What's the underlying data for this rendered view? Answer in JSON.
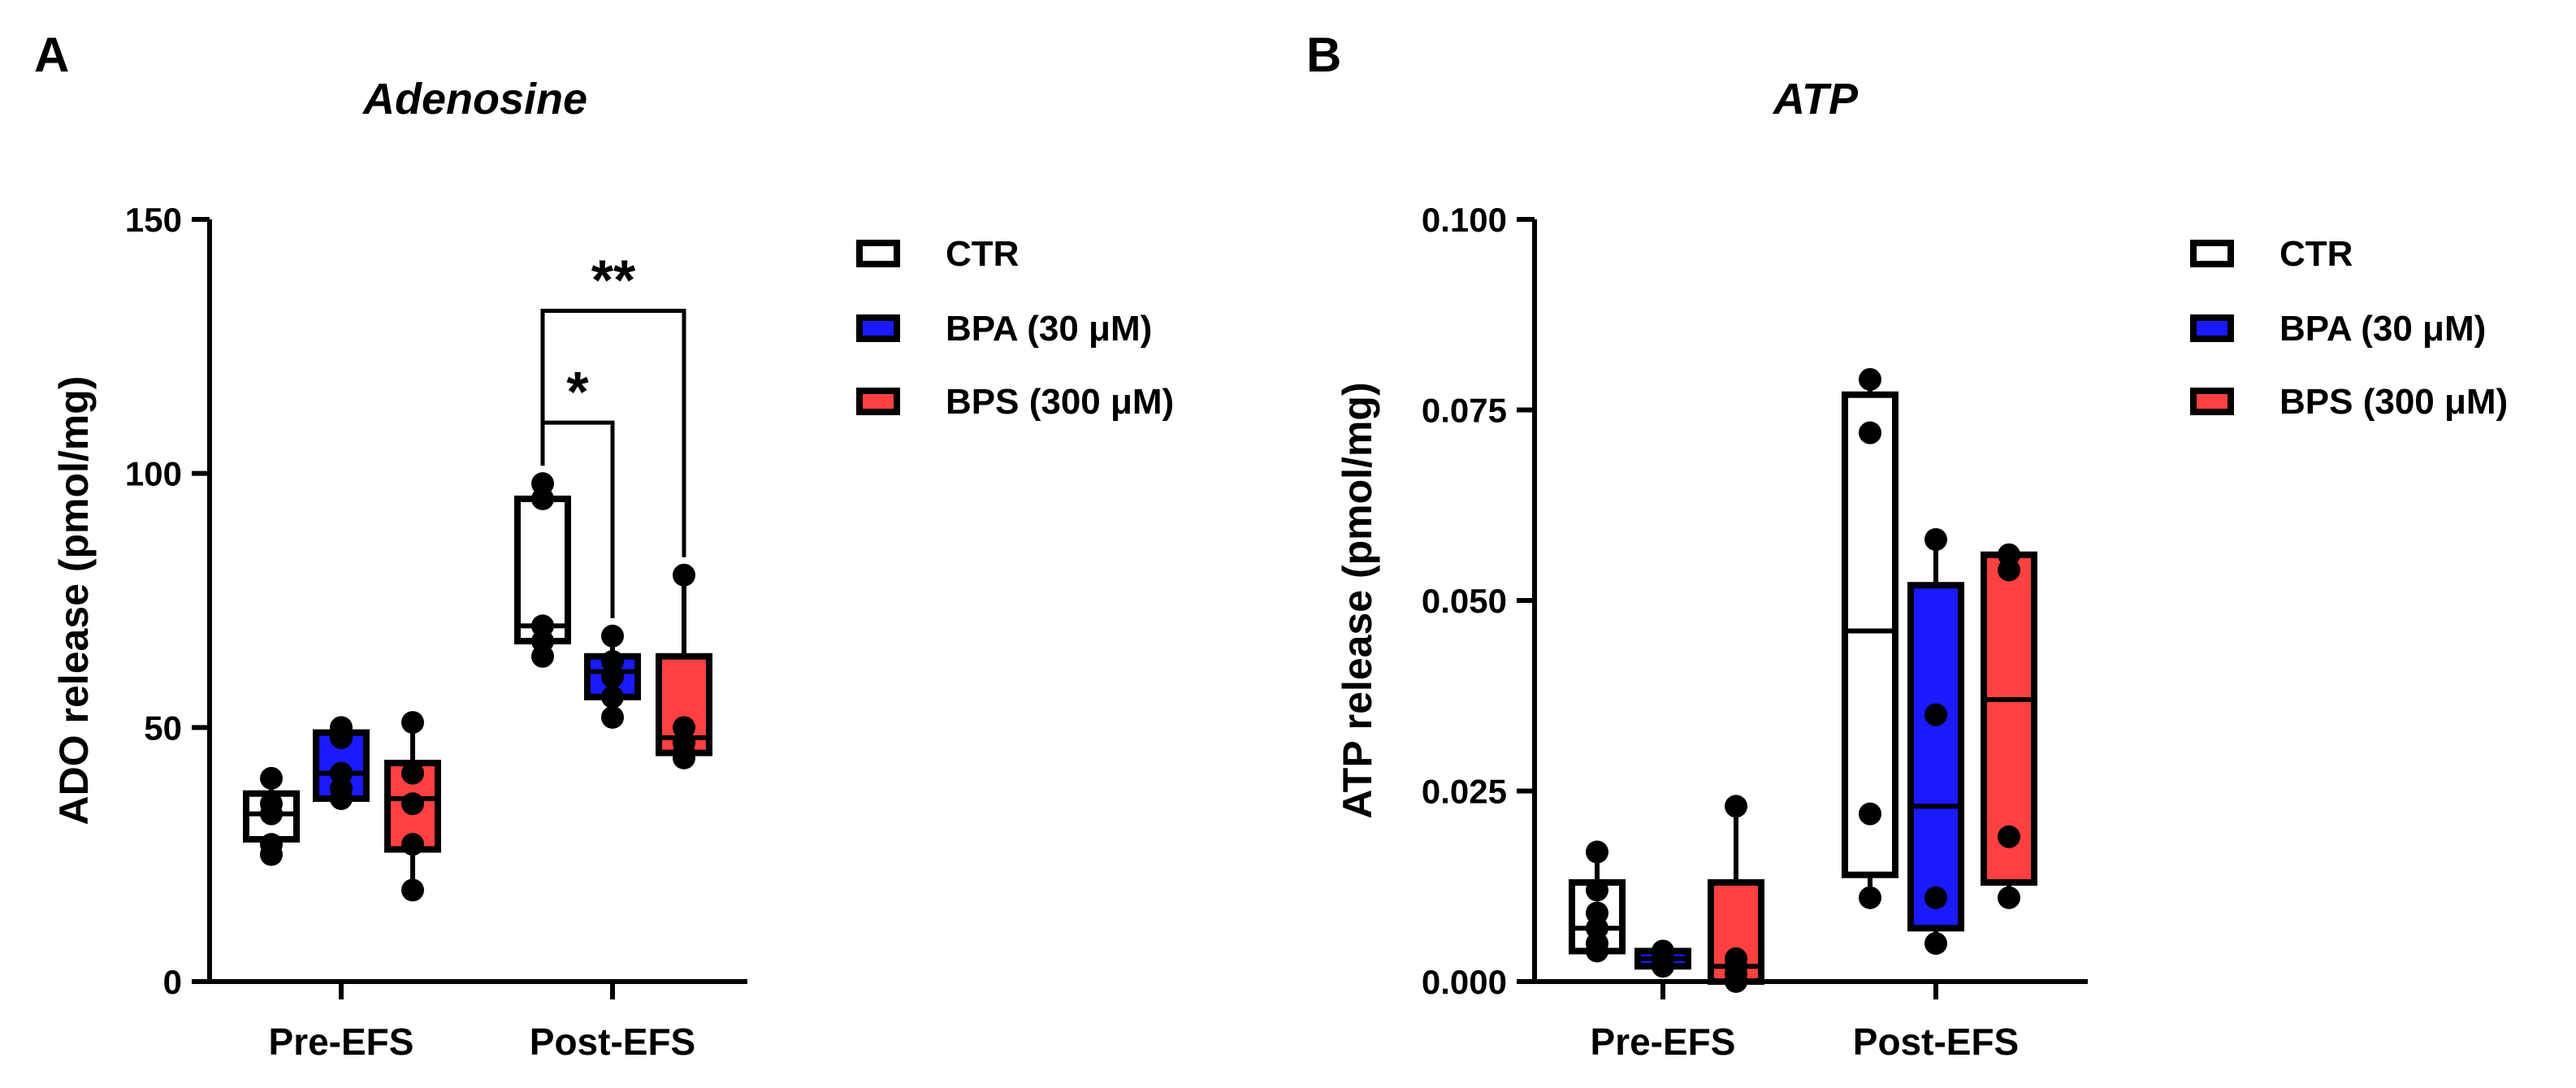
{
  "chart_data": [
    {
      "panel": "A",
      "type": "box",
      "title": "Adenosine",
      "ylabel": "ADO release (pmol/mg)",
      "xlabel": "",
      "ylim": [
        0,
        150
      ],
      "yticks": [
        0,
        50,
        100,
        150
      ],
      "ytick_labels": [
        "0",
        "50",
        "100",
        "150"
      ],
      "categories": [
        "Pre-EFS",
        "Post-EFS"
      ],
      "legend": [
        "CTR",
        "BPA (30 μM)",
        "BPS (300 μM)"
      ],
      "colors": [
        "#ffffff",
        "#1a1aff",
        "#ff4040"
      ],
      "series": [
        {
          "name": "CTR",
          "color": "#ffffff",
          "boxes": [
            {
              "min": 25,
              "q1": 28,
              "median": 33,
              "q3": 37,
              "max": 40,
              "points": [
                25,
                27,
                33,
                35,
                40
              ]
            },
            {
              "min": 64,
              "q1": 67,
              "median": 70,
              "q3": 95,
              "max": 98,
              "points": [
                64,
                67,
                70,
                95,
                98
              ]
            }
          ]
        },
        {
          "name": "BPA (30 μM)",
          "color": "#1a1aff",
          "boxes": [
            {
              "min": 35,
              "q1": 36,
              "median": 41,
              "q3": 49,
              "max": 50,
              "points": [
                36,
                38,
                41,
                48,
                50
              ]
            },
            {
              "min": 52,
              "q1": 56,
              "median": 61,
              "q3": 64,
              "max": 68,
              "points": [
                52,
                56,
                60,
                63,
                68
              ]
            }
          ]
        },
        {
          "name": "BPS (300 μM)",
          "color": "#ff4040",
          "boxes": [
            {
              "min": 18,
              "q1": 26,
              "median": 36,
              "q3": 43,
              "max": 51,
              "points": [
                18,
                27,
                35,
                41,
                51
              ]
            },
            {
              "min": 44,
              "q1": 45,
              "median": 48,
              "q3": 64,
              "max": 80,
              "points": [
                44,
                45,
                47,
                50,
                80
              ]
            }
          ]
        }
      ],
      "annotations": [
        {
          "label": "*",
          "from_series": 0,
          "to_series": 1,
          "category": 1,
          "y": 110
        },
        {
          "label": "**",
          "from_series": 0,
          "to_series": 2,
          "category": 1,
          "y": 132
        }
      ]
    },
    {
      "panel": "B",
      "type": "box",
      "title": "ATP",
      "ylabel": "ATP release (pmol/mg)",
      "xlabel": "",
      "ylim": [
        0,
        0.1
      ],
      "yticks": [
        0,
        0.025,
        0.05,
        0.075,
        0.1
      ],
      "ytick_labels": [
        "0.000",
        "0.025",
        "0.050",
        "0.075",
        "0.100"
      ],
      "categories": [
        "Pre-EFS",
        "Post-EFS"
      ],
      "legend": [
        "CTR",
        "BPA (30 μM)",
        "BPS (300 μM)"
      ],
      "colors": [
        "#ffffff",
        "#1a1aff",
        "#ff4040"
      ],
      "series": [
        {
          "name": "CTR",
          "color": "#ffffff",
          "boxes": [
            {
              "min": 0.004,
              "q1": 0.004,
              "median": 0.007,
              "q3": 0.013,
              "max": 0.017,
              "points": [
                0.004,
                0.005,
                0.007,
                0.009,
                0.012,
                0.017
              ]
            },
            {
              "min": 0.011,
              "q1": 0.014,
              "median": 0.046,
              "q3": 0.077,
              "max": 0.079,
              "points": [
                0.011,
                0.022,
                0.072,
                0.079
              ]
            }
          ]
        },
        {
          "name": "BPA (30 μM)",
          "color": "#1a1aff",
          "boxes": [
            {
              "min": 0.002,
              "q1": 0.002,
              "median": 0.003,
              "q3": 0.004,
              "max": 0.004,
              "points": [
                0.002,
                0.003,
                0.003,
                0.004
              ]
            },
            {
              "min": 0.005,
              "q1": 0.007,
              "median": 0.023,
              "q3": 0.052,
              "max": 0.058,
              "points": [
                0.005,
                0.011,
                0.035,
                0.058
              ]
            }
          ]
        },
        {
          "name": "BPS (300 μM)",
          "color": "#ff4040",
          "boxes": [
            {
              "min": 0.0,
              "q1": 0.0,
              "median": 0.002,
              "q3": 0.013,
              "max": 0.023,
              "points": [
                0.0,
                0.001,
                0.002,
                0.003,
                0.023
              ]
            },
            {
              "min": 0.011,
              "q1": 0.013,
              "median": 0.037,
              "q3": 0.056,
              "max": 0.056,
              "points": [
                0.011,
                0.019,
                0.054,
                0.056
              ]
            }
          ]
        }
      ],
      "annotations": []
    }
  ]
}
